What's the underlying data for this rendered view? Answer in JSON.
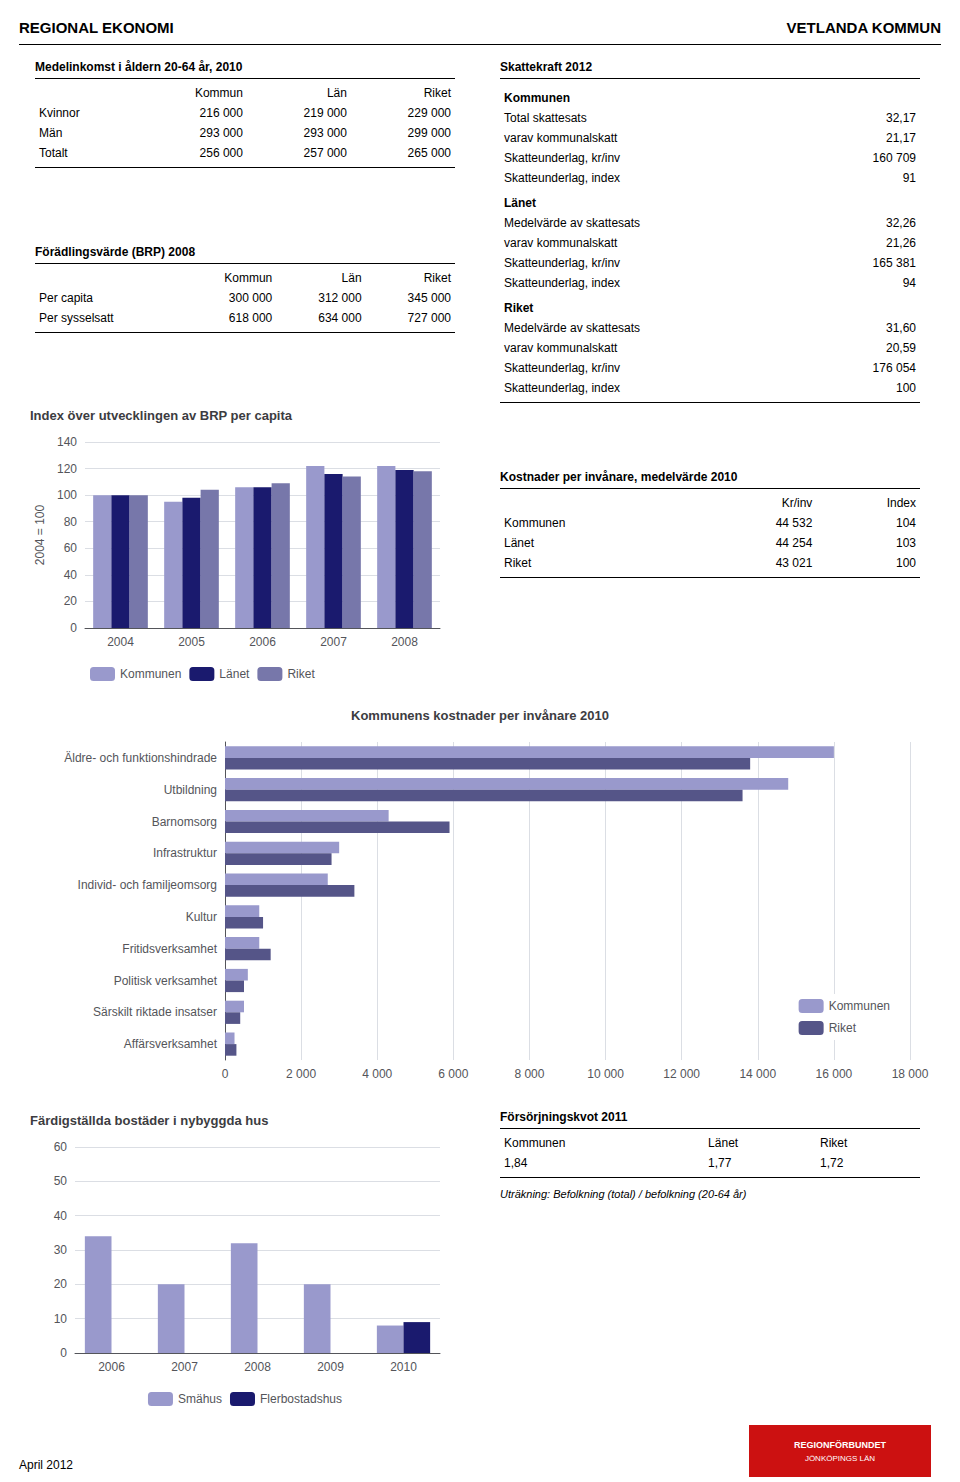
{
  "title": "REGIONAL EKONOMI",
  "subtitle": "VETLANDA KOMMUN",
  "annotations": [
    "April 2012",
    "REGIONFÖRBUNDET",
    "JÖNKÖPINGS LÄN"
  ],
  "chart_data": [
    {
      "type": "table",
      "title": "Medelinkomst i åldern 20-64 år, 2010",
      "columns": [
        "Kommun",
        "Län",
        "Riket"
      ],
      "rows": [
        [
          "Kvinnor",
          "216 000",
          "219 000",
          "229 000"
        ],
        [
          "Män",
          "293 000",
          "293 000",
          "299 000"
        ],
        [
          "Totalt",
          "256 000",
          "257 000",
          "265 000"
        ]
      ]
    },
    {
      "type": "table",
      "title": "Skattekraft 2012",
      "groups": [
        {
          "name": "Kommunen",
          "rows": [
            [
              "Total skattesats",
              "32,17"
            ],
            [
              "varav kommunalskatt",
              "21,17"
            ],
            [
              "Skatteunderlag, kr/inv",
              "160 709"
            ],
            [
              "Skatteunderlag, index",
              "91"
            ]
          ]
        },
        {
          "name": "Länet",
          "rows": [
            [
              "Medelvärde av skattesats",
              "32,26"
            ],
            [
              "varav kommunalskatt",
              "21,26"
            ],
            [
              "Skatteunderlag, kr/inv",
              "165 381"
            ],
            [
              "Skatteunderlag, index",
              "94"
            ]
          ]
        },
        {
          "name": "Riket",
          "rows": [
            [
              "Medelvärde av skattesats",
              "31,60"
            ],
            [
              "varav kommunalskatt",
              "20,59"
            ],
            [
              "Skatteunderlag, kr/inv",
              "176 054"
            ],
            [
              "Skatteunderlag, index",
              "100"
            ]
          ]
        }
      ]
    },
    {
      "type": "table",
      "title": "Förädlingsvärde (BRP) 2008",
      "columns": [
        "Kommun",
        "Län",
        "Riket"
      ],
      "rows": [
        [
          "Per capita",
          "300 000",
          "312 000",
          "345 000"
        ],
        [
          "Per sysselsatt",
          "618 000",
          "634 000",
          "727 000"
        ]
      ]
    },
    {
      "type": "bar",
      "title": "Index över utvecklingen av BRP per capita",
      "y_label": "2004 = 100",
      "categories": [
        "2004",
        "2005",
        "2006",
        "2007",
        "2008"
      ],
      "series": [
        {
          "name": "Kommunen",
          "color": "#9999cc",
          "values": [
            100,
            95,
            106,
            122,
            122
          ]
        },
        {
          "name": "Länet",
          "color": "#1a1a6e",
          "values": [
            100,
            98,
            106,
            116,
            119
          ]
        },
        {
          "name": "Riket",
          "color": "#7777aa",
          "values": [
            100,
            104,
            109,
            114,
            118
          ]
        }
      ],
      "ylim": [
        0,
        140
      ],
      "yticks": [
        0,
        20,
        40,
        60,
        80,
        100,
        120,
        140
      ],
      "grid": true,
      "legend": "lower left"
    },
    {
      "type": "table",
      "title": "Kostnader per invånare, medelvärde 2010",
      "columns": [
        "Kr/inv",
        "Index"
      ],
      "rows": [
        [
          "Kommunen",
          "44 532",
          "104"
        ],
        [
          "Länet",
          "44 254",
          "103"
        ],
        [
          "Riket",
          "43 021",
          "100"
        ]
      ]
    },
    {
      "type": "bar",
      "orientation": "horizontal",
      "title": "Kommunens kostnader per invånare 2010",
      "categories": [
        "Äldre- och funktionshindrade",
        "Utbildning",
        "Barnomsorg",
        "Infrastruktur",
        "Individ- och familjeomsorg",
        "Kultur",
        "Fritidsverksamhet",
        "Politisk verksamhet",
        "Särskilt riktade insatser",
        "Affärsverksamhet"
      ],
      "series": [
        {
          "name": "Kommunen",
          "color": "#9999cc",
          "values": [
            16000,
            14800,
            4300,
            3000,
            2700,
            900,
            900,
            600,
            500,
            250
          ]
        },
        {
          "name": "Riket",
          "color": "#555588",
          "values": [
            13800,
            13600,
            5900,
            2800,
            3400,
            1000,
            1200,
            500,
            400,
            300
          ]
        }
      ],
      "xlim": [
        0,
        18000
      ],
      "xticks": [
        0,
        {
          "value": 2000,
          "label": "2 000"
        },
        {
          "value": 4000,
          "label": "4 000"
        },
        {
          "value": 6000,
          "label": "6 000"
        },
        {
          "value": 8000,
          "label": "8 000"
        },
        {
          "value": 10000,
          "label": "10 000"
        },
        {
          "value": 12000,
          "label": "12 000"
        },
        {
          "value": 14000,
          "label": "14 000"
        },
        {
          "value": 16000,
          "label": "16 000"
        },
        {
          "value": 18000,
          "label": "18 000"
        }
      ],
      "grid": true,
      "legend": "lower right"
    },
    {
      "type": "bar",
      "title": "Färdigställda bostäder i nybyggda hus",
      "categories": [
        "2006",
        "2007",
        "2008",
        "2009",
        "2010"
      ],
      "series": [
        {
          "name": "Smähus",
          "color": "#9999cc",
          "values": [
            34,
            20,
            32,
            20,
            8
          ]
        },
        {
          "name": "Flerbostadshus",
          "color": "#1a1a6e",
          "values": [
            0,
            0,
            0,
            0,
            9
          ]
        }
      ],
      "ylim": [
        0,
        60
      ],
      "yticks": [
        0,
        10,
        20,
        30,
        40,
        50,
        60
      ],
      "grid": true,
      "legend": "lower center"
    },
    {
      "type": "table",
      "title": "Försörjningskvot 2011",
      "columns": [
        "Kommunen",
        "Länet",
        "Riket"
      ],
      "rows": [
        [
          "1,84",
          "1,77",
          "1,72"
        ]
      ],
      "note": "Uträkning: Befolkning (total) / befolkning (20-64 år)"
    }
  ]
}
